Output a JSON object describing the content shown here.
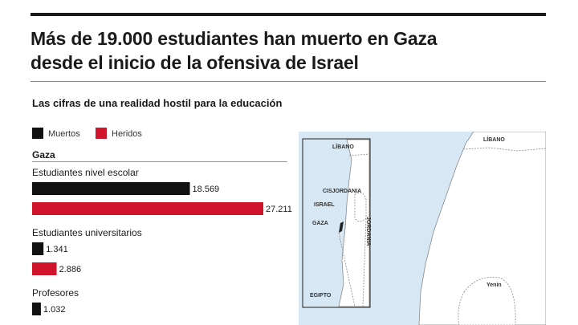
{
  "headline": {
    "line1": "Más de 19.000 estudiantes han muerto en Gaza",
    "line2": "desde el inicio de la ofensiva de Israel"
  },
  "subheadline": "Las cifras de una realidad hostil para la educación",
  "legend": [
    {
      "label": "Muertos",
      "color": "#111111"
    },
    {
      "label": "Heridos",
      "color": "#d0142c"
    }
  ],
  "region": "Gaza",
  "chart_data": {
    "type": "bar",
    "orientation": "horizontal",
    "categories": [
      "Estudiantes nivel escolar",
      "Estudiantes universitarios",
      "Profesores"
    ],
    "series": [
      {
        "name": "Muertos",
        "values": [
          18569,
          1341,
          1032
        ],
        "labels": [
          "18.569",
          "1.341",
          "1.032"
        ],
        "color": "#111111"
      },
      {
        "name": "Heridos",
        "values": [
          27211,
          2886,
          null
        ],
        "labels": [
          "27.211",
          "2.886",
          ""
        ],
        "color": "#d0142c"
      }
    ],
    "xlim": [
      0,
      27211
    ]
  },
  "map": {
    "inset_labels": {
      "lebanon": "LÍBANO",
      "west_bank": "CISJORDANIA",
      "israel": "ISRAEL",
      "gaza": "GAZA",
      "jordan": "JORDANIA",
      "egypt": "EGIPTO"
    },
    "main_labels": {
      "lebanon": "LÍBANO",
      "town": "Yenin"
    },
    "colors": {
      "sea": "#d7e7f3",
      "land": "#ffffff",
      "border": "#8a8a8a"
    }
  }
}
